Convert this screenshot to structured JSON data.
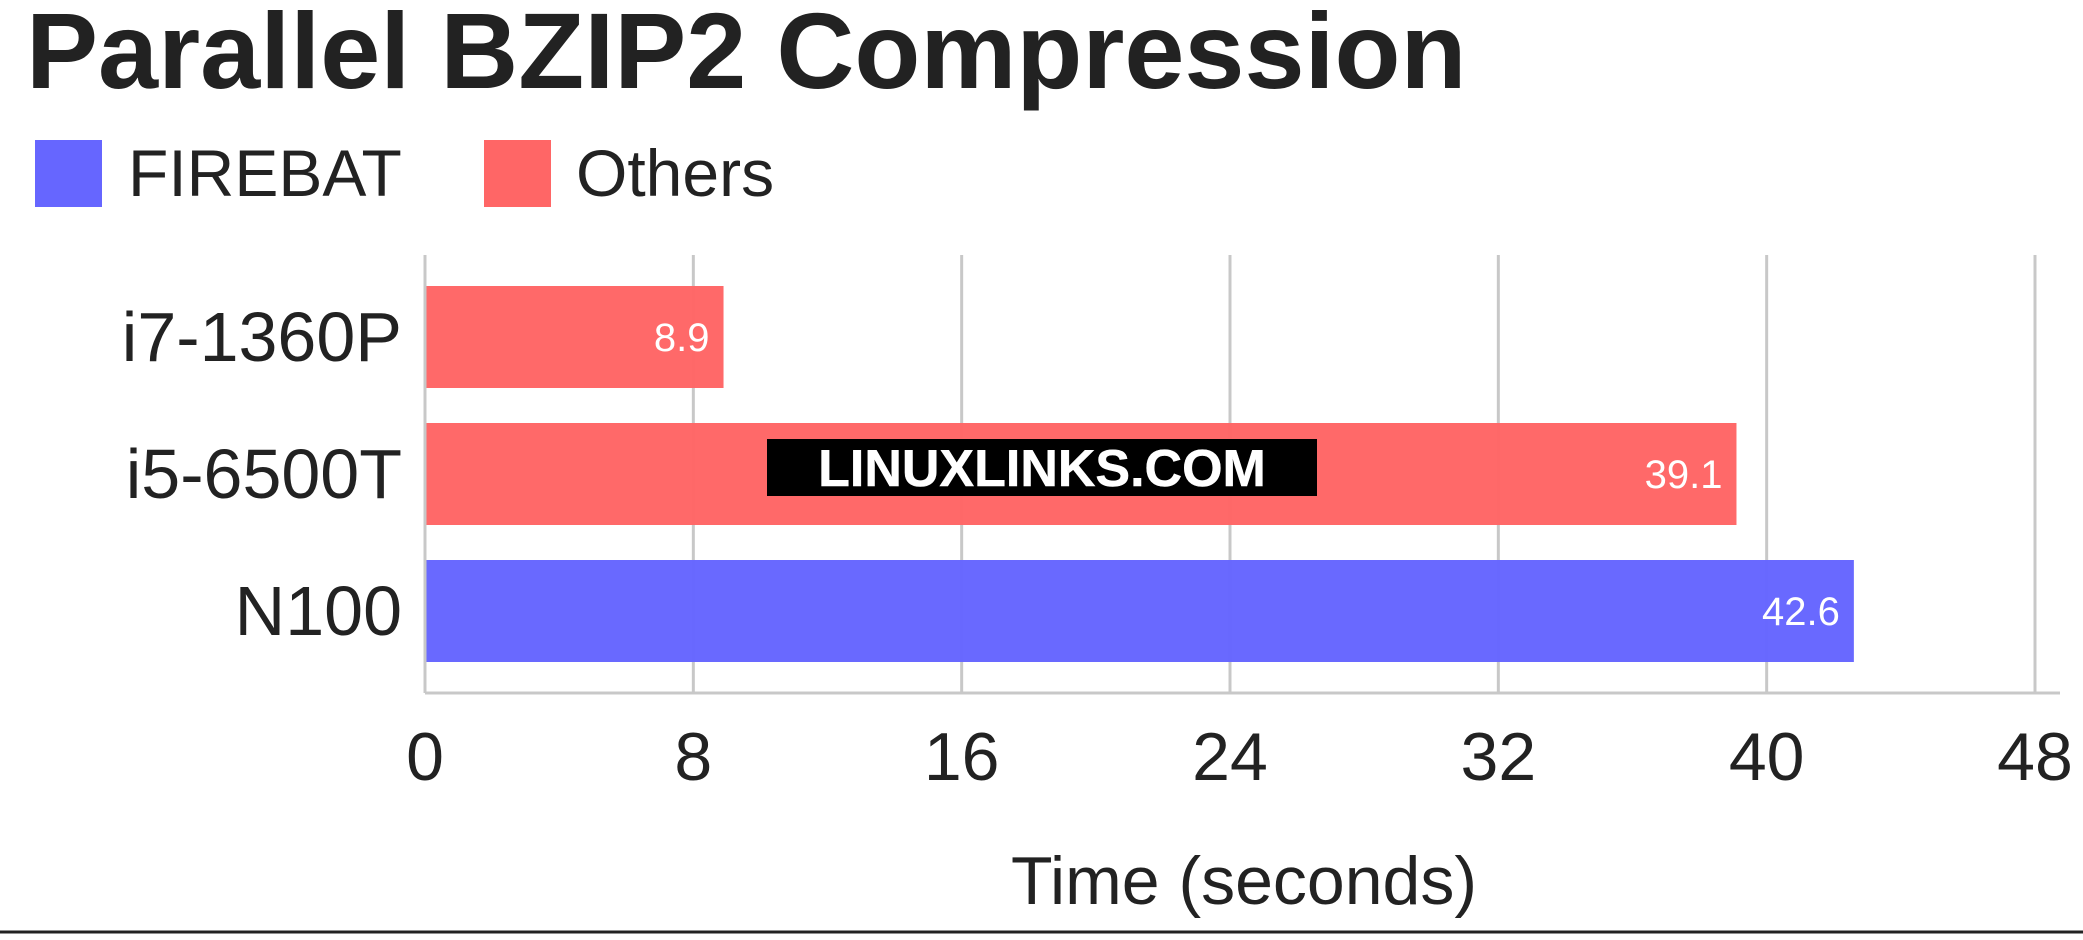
{
  "chart_data": {
    "type": "bar",
    "orientation": "horizontal",
    "title": "Parallel BZIP2 Compression",
    "xlabel": "Time (seconds)",
    "ylabel": "",
    "categories": [
      "i7-1360P",
      "i5-6500T",
      "N100"
    ],
    "values": [
      8.9,
      39.1,
      42.6
    ],
    "value_labels": [
      "8.9",
      "39.1",
      "42.6"
    ],
    "bar_groups": [
      "Others",
      "Others",
      "FIREBAT"
    ],
    "legend": [
      {
        "name": "FIREBAT",
        "color": "#6666ff"
      },
      {
        "name": "Others",
        "color": "#ff6666"
      }
    ],
    "legend_position": "top-left",
    "xlim": [
      0,
      48
    ],
    "xticks": [
      0,
      8,
      16,
      24,
      32,
      40,
      48
    ],
    "xtick_labels": [
      "0",
      "8",
      "16",
      "24",
      "32",
      "40",
      "48"
    ],
    "grid": true,
    "watermark": "LINUXLINKS.COM"
  }
}
